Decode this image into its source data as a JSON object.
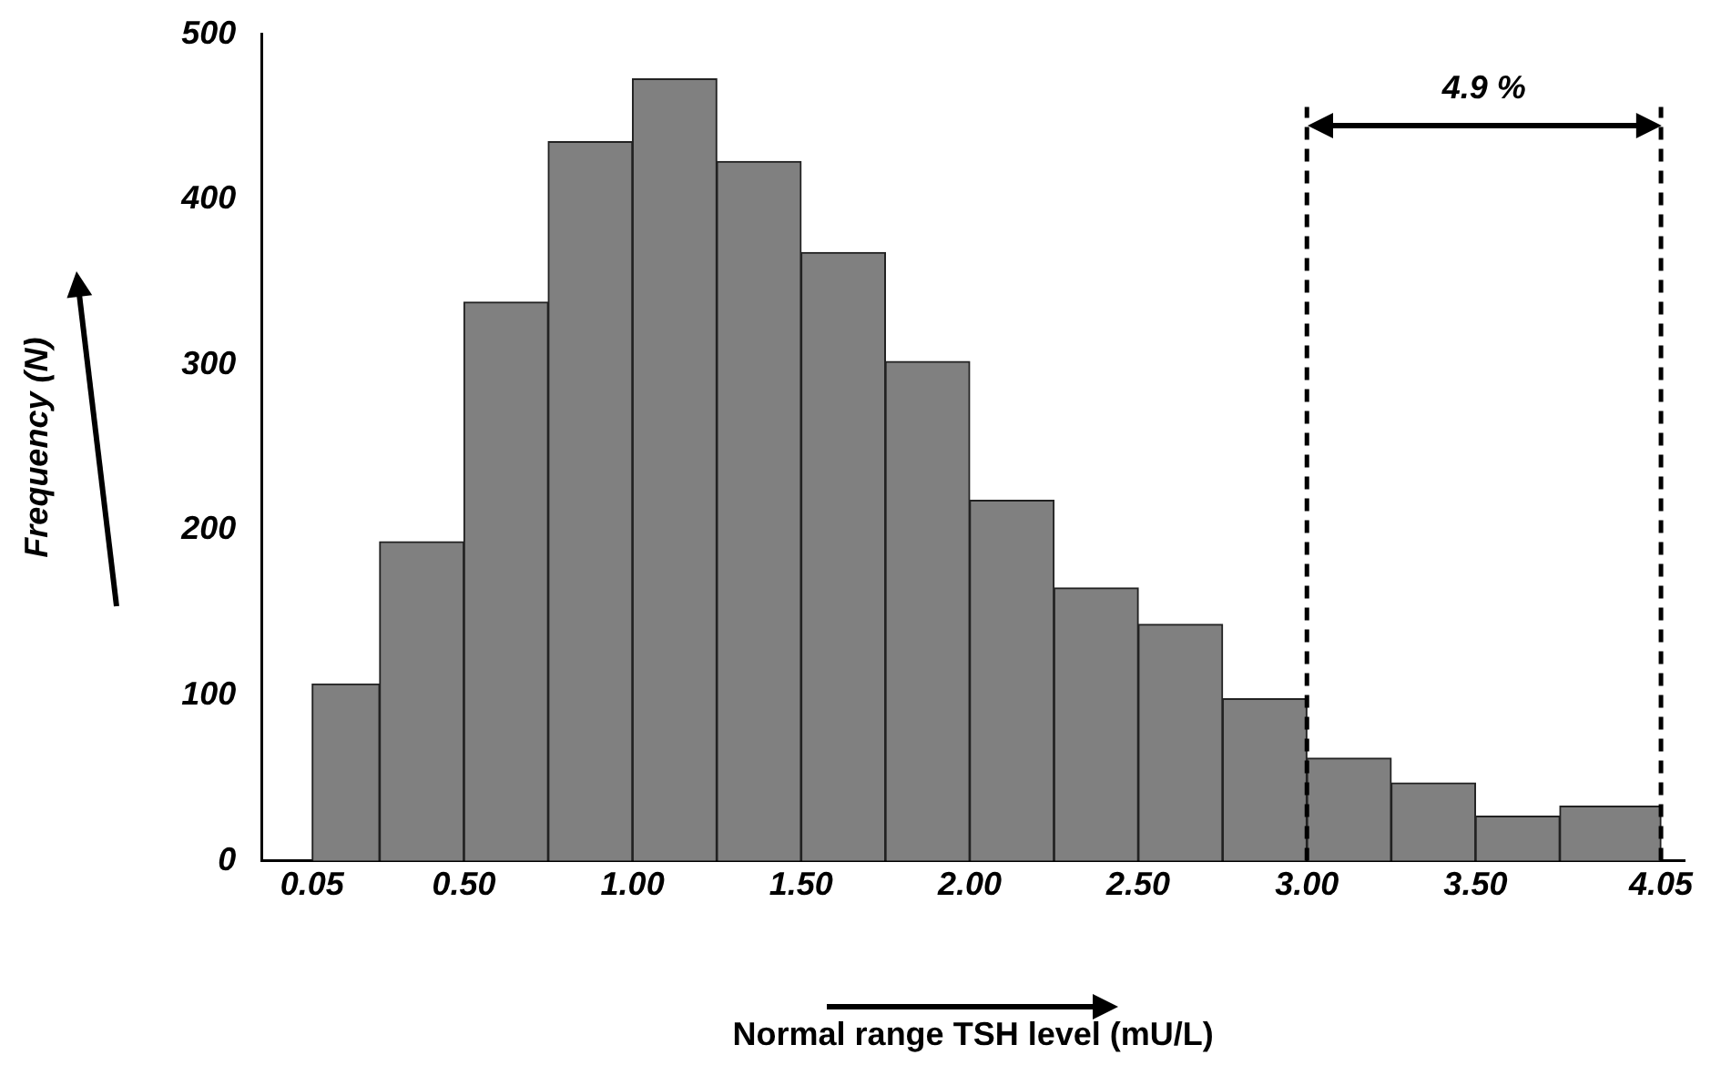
{
  "chart_data": {
    "type": "histogram",
    "xlabel": "Normal range TSH level (mU/L)",
    "ylabel": "Frequency (N)",
    "bins": [
      0.05,
      0.25,
      0.5,
      0.75,
      1.0,
      1.25,
      1.5,
      1.75,
      2.0,
      2.25,
      2.5,
      2.75,
      3.0,
      3.25,
      3.5,
      3.75,
      4.05
    ],
    "values": [
      107,
      193,
      338,
      435,
      473,
      423,
      368,
      302,
      218,
      165,
      143,
      98,
      62,
      47,
      27,
      33
    ],
    "color": "#808080",
    "xlim": [
      -0.1,
      4.12
    ],
    "xticks": [
      0.05,
      {
        "value": 0.5,
        "label": "0.50"
      },
      {
        "value": 1,
        "label": "1.00"
      },
      {
        "value": 1.5,
        "label": "1.50"
      },
      {
        "value": 2,
        "label": "2.00"
      },
      {
        "value": 2.5,
        "label": "2.50"
      },
      {
        "value": 3,
        "label": "3.00"
      },
      {
        "value": 3.5,
        "label": "3.50"
      },
      4.05
    ],
    "ylim": [
      0,
      500
    ],
    "yticks": [
      0,
      100,
      200,
      300,
      400,
      500
    ],
    "grid": false,
    "ref_lines": [
      {
        "axis": "x",
        "value": 3.0,
        "color": "#000000",
        "line_style": "dashed"
      },
      {
        "axis": "x",
        "value": 4.05,
        "color": "#000000",
        "line_style": "dashed"
      }
    ],
    "annotations": [
      "4.9 %"
    ]
  }
}
